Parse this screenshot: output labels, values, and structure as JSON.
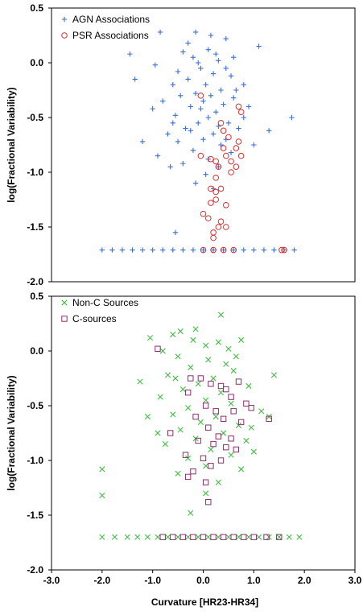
{
  "chart_data": [
    {
      "type": "scatter",
      "xlabel": "",
      "ylabel": "log(Fractional Variability)",
      "xlim": [
        -3.0,
        3.0
      ],
      "ylim": [
        -2.0,
        0.5
      ],
      "y_ticks": [
        "0.5",
        "0.0",
        "-0.5",
        "-1.0",
        "-1.5",
        "-2.0"
      ],
      "x_ticks": [],
      "grid": false,
      "legend_position": "top-left",
      "series": [
        {
          "name": "AGN Associations",
          "marker": "plus",
          "color": "#3a6fd8",
          "points": [
            [
              -1.45,
              0.08
            ],
            [
              -0.85,
              0.28
            ],
            [
              -1.35,
              -0.15
            ],
            [
              1.1,
              0.15
            ],
            [
              1.75,
              -0.5
            ],
            [
              -0.95,
              -0.02
            ],
            [
              -0.4,
              0.1
            ],
            [
              0.45,
              0.22
            ],
            [
              -0.2,
              0.05
            ],
            [
              0.1,
              0.12
            ],
            [
              0.3,
              0.02
            ],
            [
              -0.05,
              -0.05
            ],
            [
              0.2,
              -0.1
            ],
            [
              0.55,
              -0.12
            ],
            [
              -0.3,
              -0.15
            ],
            [
              0.05,
              -0.2
            ],
            [
              -0.6,
              -0.2
            ],
            [
              0.8,
              -0.2
            ],
            [
              0.35,
              -0.25
            ],
            [
              -0.15,
              -0.28
            ],
            [
              0.15,
              -0.3
            ],
            [
              -0.45,
              -0.3
            ],
            [
              0.6,
              -0.32
            ],
            [
              -0.8,
              -0.35
            ],
            [
              0.0,
              -0.35
            ],
            [
              0.4,
              -0.38
            ],
            [
              -0.25,
              -0.4
            ],
            [
              0.9,
              -0.4
            ],
            [
              -1.0,
              -0.42
            ],
            [
              0.25,
              -0.45
            ],
            [
              -0.55,
              -0.48
            ],
            [
              0.1,
              -0.5
            ],
            [
              -0.1,
              -0.55
            ],
            [
              0.5,
              -0.55
            ],
            [
              -0.35,
              -0.6
            ],
            [
              0.7,
              -0.6
            ],
            [
              -0.7,
              -0.65
            ],
            [
              0.2,
              -0.65
            ],
            [
              0.0,
              -0.7
            ],
            [
              -0.5,
              -0.72
            ],
            [
              0.35,
              -0.75
            ],
            [
              -0.2,
              -0.8
            ],
            [
              0.55,
              -0.82
            ],
            [
              -0.9,
              -0.85
            ],
            [
              0.1,
              -0.88
            ],
            [
              -0.4,
              -0.92
            ],
            [
              0.3,
              -0.95
            ],
            [
              0.05,
              -1.02
            ],
            [
              -0.15,
              -1.1
            ],
            [
              0.2,
              -1.15
            ],
            [
              1.0,
              -0.75
            ],
            [
              1.3,
              -0.62
            ],
            [
              -1.2,
              -0.72
            ],
            [
              -0.65,
              -0.95
            ],
            [
              -0.55,
              -1.55
            ],
            [
              0.15,
              0.25
            ],
            [
              -0.3,
              0.18
            ],
            [
              0.25,
              0.08
            ],
            [
              -0.1,
              0.0
            ],
            [
              0.45,
              -0.05
            ],
            [
              -0.5,
              -0.08
            ],
            [
              0.65,
              -0.25
            ],
            [
              -0.05,
              -0.42
            ],
            [
              0.3,
              -0.58
            ],
            [
              -0.25,
              -0.62
            ],
            [
              0.45,
              -0.7
            ],
            [
              -0.6,
              -0.55
            ],
            [
              0.8,
              -0.5
            ],
            [
              -0.15,
              0.28
            ],
            [
              0.6,
              0.05
            ],
            [
              -2.0,
              -1.71
            ],
            [
              -1.8,
              -1.71
            ],
            [
              -1.6,
              -1.71
            ],
            [
              -1.4,
              -1.71
            ],
            [
              -1.2,
              -1.71
            ],
            [
              -1.0,
              -1.71
            ],
            [
              -0.8,
              -1.71
            ],
            [
              -0.6,
              -1.71
            ],
            [
              -0.4,
              -1.71
            ],
            [
              -0.2,
              -1.71
            ],
            [
              0.0,
              -1.71
            ],
            [
              0.2,
              -1.71
            ],
            [
              0.4,
              -1.71
            ],
            [
              0.6,
              -1.71
            ],
            [
              0.8,
              -1.71
            ],
            [
              1.0,
              -1.71
            ],
            [
              1.2,
              -1.71
            ],
            [
              1.4,
              -1.71
            ],
            [
              1.6,
              -1.71
            ],
            [
              1.8,
              -1.71
            ]
          ]
        },
        {
          "name": "PSR Associations",
          "marker": "circle",
          "color": "#d83030",
          "points": [
            [
              0.7,
              -0.4
            ],
            [
              0.75,
              -0.45
            ],
            [
              -0.05,
              -0.3
            ],
            [
              0.35,
              -0.55
            ],
            [
              0.4,
              -0.62
            ],
            [
              0.5,
              -0.68
            ],
            [
              0.7,
              -0.72
            ],
            [
              0.65,
              -0.78
            ],
            [
              0.4,
              -0.78
            ],
            [
              0.75,
              -0.85
            ],
            [
              0.45,
              -0.85
            ],
            [
              0.55,
              -0.9
            ],
            [
              -0.05,
              -0.85
            ],
            [
              0.15,
              -0.88
            ],
            [
              0.25,
              -0.9
            ],
            [
              0.3,
              -0.95
            ],
            [
              0.65,
              -0.95
            ],
            [
              0.55,
              -1.0
            ],
            [
              0.25,
              -1.05
            ],
            [
              0.35,
              -1.15
            ],
            [
              0.15,
              -1.15
            ],
            [
              0.25,
              -1.18
            ],
            [
              0.25,
              -1.25
            ],
            [
              0.15,
              -1.28
            ],
            [
              0.45,
              -1.3
            ],
            [
              0.0,
              -1.38
            ],
            [
              0.1,
              -1.42
            ],
            [
              0.35,
              -1.45
            ],
            [
              0.3,
              -1.5
            ],
            [
              0.45,
              -1.5
            ],
            [
              0.2,
              -1.55
            ],
            [
              0.2,
              -1.6
            ],
            [
              0.0,
              -1.71
            ],
            [
              0.2,
              -1.71
            ],
            [
              0.4,
              -1.71
            ],
            [
              0.6,
              -1.71
            ],
            [
              1.55,
              -1.71
            ],
            [
              1.6,
              -1.71
            ]
          ]
        }
      ]
    },
    {
      "type": "scatter",
      "xlabel": "Curvature [HR23-HR34]",
      "ylabel": "log(Fractional Variability)",
      "xlim": [
        -3.0,
        3.0
      ],
      "ylim": [
        -2.0,
        0.5
      ],
      "y_ticks": [
        "0.5",
        "0.0",
        "-0.5",
        "-1.0",
        "-1.5",
        "-2.0"
      ],
      "x_ticks": [
        "-3.0",
        "-2.0",
        "-1.0",
        "0.0",
        "1.0",
        "2.0",
        "3.0"
      ],
      "grid": false,
      "legend_position": "top-left",
      "series": [
        {
          "name": "Non-C Sources",
          "marker": "x",
          "color": "#40c040",
          "points": [
            [
              0.35,
              0.33
            ],
            [
              -1.05,
              0.12
            ],
            [
              -0.6,
              0.15
            ],
            [
              -0.45,
              0.18
            ],
            [
              -0.2,
              0.1
            ],
            [
              0.05,
              0.05
            ],
            [
              0.3,
              0.08
            ],
            [
              0.75,
              0.1
            ],
            [
              -0.8,
              0.0
            ],
            [
              -1.25,
              -0.28
            ],
            [
              1.4,
              -0.22
            ],
            [
              -0.5,
              -0.05
            ],
            [
              0.1,
              -0.08
            ],
            [
              0.45,
              -0.12
            ],
            [
              -0.25,
              -0.15
            ],
            [
              0.6,
              -0.18
            ],
            [
              -0.7,
              -0.22
            ],
            [
              0.2,
              -0.25
            ],
            [
              -0.1,
              -0.3
            ],
            [
              0.9,
              -0.32
            ],
            [
              -0.4,
              -0.35
            ],
            [
              0.35,
              -0.38
            ],
            [
              -0.85,
              -0.42
            ],
            [
              0.05,
              -0.45
            ],
            [
              0.55,
              -0.48
            ],
            [
              -0.3,
              -0.52
            ],
            [
              1.15,
              -0.55
            ],
            [
              -0.6,
              -0.58
            ],
            [
              0.25,
              -0.6
            ],
            [
              -0.05,
              -0.65
            ],
            [
              0.7,
              -0.68
            ],
            [
              -0.45,
              -0.72
            ],
            [
              0.4,
              -0.75
            ],
            [
              -0.15,
              -0.8
            ],
            [
              0.85,
              -0.82
            ],
            [
              -0.75,
              -0.85
            ],
            [
              0.15,
              -0.9
            ],
            [
              0.55,
              -0.95
            ],
            [
              -0.3,
              -0.98
            ],
            [
              0.05,
              -1.05
            ],
            [
              0.75,
              -1.08
            ],
            [
              -0.5,
              -1.12
            ],
            [
              0.3,
              -1.2
            ],
            [
              1.0,
              -0.92
            ],
            [
              -0.25,
              -1.48
            ],
            [
              -2.0,
              -1.08
            ],
            [
              -2.0,
              -1.32
            ],
            [
              0.05,
              -1.3
            ],
            [
              -0.55,
              -0.25
            ],
            [
              0.5,
              0.02
            ],
            [
              -0.15,
              0.2
            ],
            [
              0.65,
              -0.05
            ],
            [
              1.3,
              -0.6
            ],
            [
              -1.1,
              -0.6
            ],
            [
              0.95,
              -0.7
            ],
            [
              -0.9,
              -0.75
            ],
            [
              -2.0,
              -1.7
            ],
            [
              -1.75,
              -1.7
            ],
            [
              -1.5,
              -1.7
            ],
            [
              -1.3,
              -1.7
            ],
            [
              -1.1,
              -1.7
            ],
            [
              -0.9,
              -1.7
            ],
            [
              -0.7,
              -1.7
            ],
            [
              -0.5,
              -1.7
            ],
            [
              -0.3,
              -1.7
            ],
            [
              -0.1,
              -1.7
            ],
            [
              0.1,
              -1.7
            ],
            [
              0.3,
              -1.7
            ],
            [
              0.5,
              -1.7
            ],
            [
              0.7,
              -1.7
            ],
            [
              0.9,
              -1.7
            ],
            [
              1.1,
              -1.7
            ],
            [
              1.3,
              -1.7
            ],
            [
              1.5,
              -1.7
            ],
            [
              1.7,
              -1.7
            ],
            [
              1.9,
              -1.7
            ]
          ]
        },
        {
          "name": "C-sources",
          "marker": "square",
          "color": "#8a2e6e",
          "points": [
            [
              -0.9,
              0.02
            ],
            [
              -0.05,
              -0.25
            ],
            [
              0.15,
              -0.3
            ],
            [
              0.35,
              -0.32
            ],
            [
              0.7,
              -0.28
            ],
            [
              -0.3,
              -0.38
            ],
            [
              0.55,
              -0.42
            ],
            [
              0.85,
              -0.48
            ],
            [
              0.05,
              -0.5
            ],
            [
              0.25,
              -0.55
            ],
            [
              0.6,
              -0.55
            ],
            [
              -0.15,
              -0.6
            ],
            [
              0.4,
              -0.62
            ],
            [
              0.75,
              -0.65
            ],
            [
              1.3,
              -0.62
            ],
            [
              0.1,
              -0.7
            ],
            [
              -0.65,
              -0.75
            ],
            [
              0.3,
              -0.78
            ],
            [
              0.55,
              -0.8
            ],
            [
              -0.1,
              -0.82
            ],
            [
              0.2,
              -0.85
            ],
            [
              0.45,
              -0.88
            ],
            [
              0.65,
              -0.9
            ],
            [
              -0.35,
              -0.95
            ],
            [
              0.0,
              -0.98
            ],
            [
              0.35,
              -1.0
            ],
            [
              0.15,
              -1.05
            ],
            [
              -0.2,
              -1.1
            ],
            [
              -0.3,
              -1.15
            ],
            [
              0.05,
              -1.2
            ],
            [
              0.1,
              -1.38
            ],
            [
              -0.25,
              -0.25
            ],
            [
              0.45,
              -0.35
            ],
            [
              0.95,
              -0.52
            ],
            [
              -0.8,
              -1.7
            ],
            [
              -0.6,
              -1.7
            ],
            [
              -0.4,
              -1.7
            ],
            [
              -0.2,
              -1.7
            ],
            [
              0.0,
              -1.7
            ],
            [
              0.2,
              -1.7
            ],
            [
              0.4,
              -1.7
            ],
            [
              0.6,
              -1.7
            ],
            [
              0.8,
              -1.7
            ],
            [
              1.0,
              -1.7
            ],
            [
              1.25,
              -1.7
            ],
            [
              1.5,
              -1.7
            ]
          ]
        }
      ]
    }
  ]
}
